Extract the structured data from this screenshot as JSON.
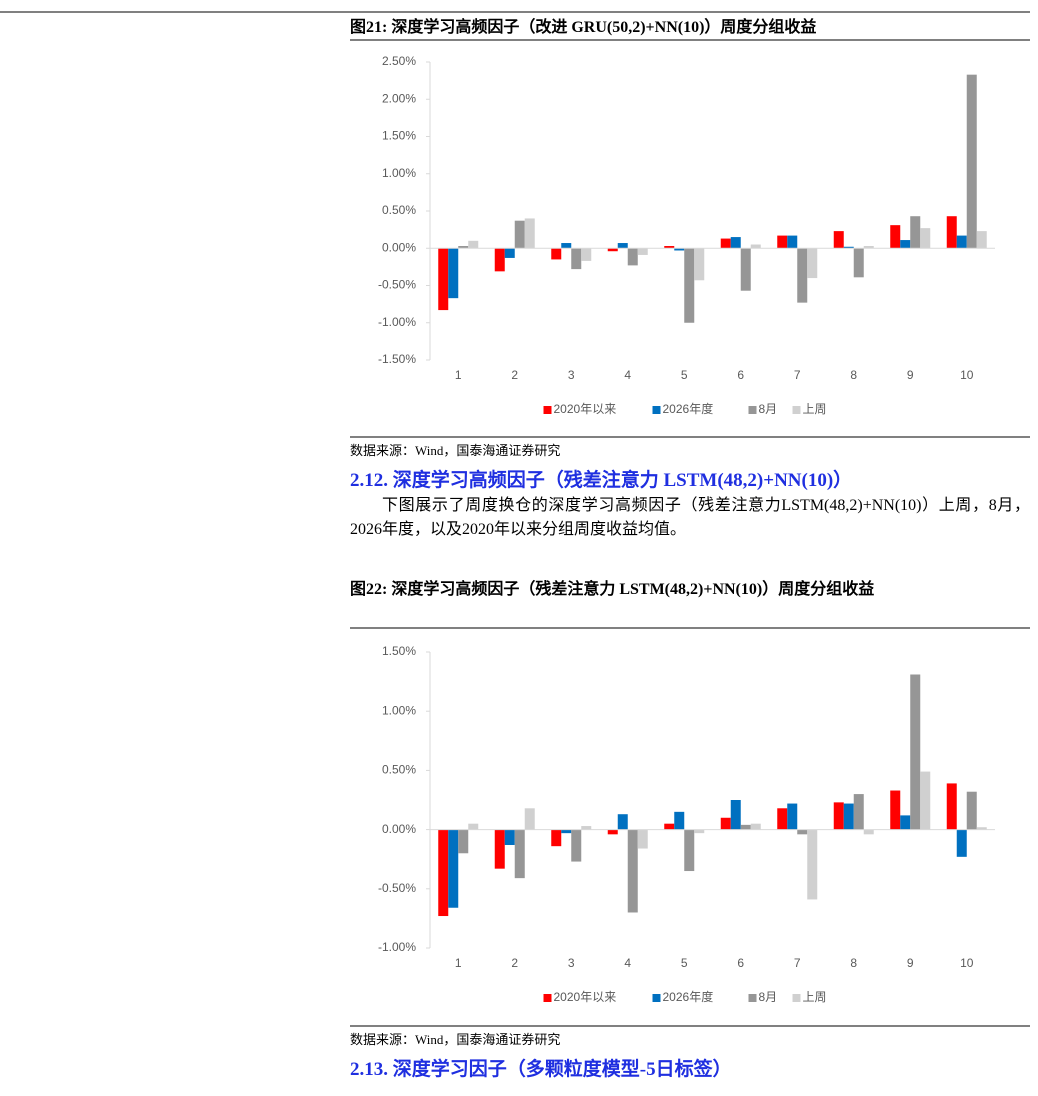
{
  "chart_data": [
    {
      "type": "bar",
      "title": "图21: 深度学习高频因子（改进 GRU(50,2)+NN(10)）周度分组收益",
      "source": "数据来源：Wind，国泰海通证券研究",
      "categories": [
        "1",
        "2",
        "3",
        "4",
        "5",
        "6",
        "7",
        "8",
        "9",
        "10"
      ],
      "series": [
        {
          "name": "2020年以来",
          "color": "#ff0000",
          "values": [
            -0.83,
            -0.31,
            -0.15,
            -0.04,
            0.03,
            0.13,
            0.17,
            0.23,
            0.31,
            0.43
          ]
        },
        {
          "name": "2026年度",
          "color": "#0070c0",
          "values": [
            -0.67,
            -0.13,
            0.07,
            0.07,
            -0.03,
            0.15,
            0.17,
            0.02,
            0.11,
            0.17
          ]
        },
        {
          "name": "8月",
          "color": "#969696",
          "values": [
            0.03,
            0.37,
            -0.28,
            -0.23,
            -1.0,
            -0.57,
            -0.73,
            -0.39,
            0.43,
            2.33
          ]
        },
        {
          "name": "上周",
          "color": "#d0d0d0",
          "values": [
            0.1,
            0.4,
            -0.17,
            -0.09,
            -0.43,
            0.05,
            -0.4,
            0.03,
            0.27,
            0.23
          ]
        }
      ],
      "ylim": [
        -1.5,
        2.5
      ],
      "yticks": [
        {
          "value": -1.5,
          "label": "-1.50%"
        },
        {
          "value": -1.0,
          "label": "-1.00%"
        },
        {
          "value": -0.5,
          "label": "-0.50%"
        },
        {
          "value": 0,
          "label": "0.00%"
        },
        {
          "value": 0.5,
          "label": "0.50%"
        },
        {
          "value": 1.0,
          "label": "1.00%"
        },
        {
          "value": 1.5,
          "label": "1.50%"
        },
        {
          "value": 2.0,
          "label": "2.00%"
        },
        {
          "value": 2.5,
          "label": "2.50%"
        }
      ],
      "legend": "bottom"
    },
    {
      "type": "bar",
      "title": "图22: 深度学习高频因子（残差注意力 LSTM(48,2)+NN(10)）周度分组收益",
      "source": "数据来源：Wind，国泰海通证券研究",
      "categories": [
        "1",
        "2",
        "3",
        "4",
        "5",
        "6",
        "7",
        "8",
        "9",
        "10"
      ],
      "series": [
        {
          "name": "2020年以来",
          "color": "#ff0000",
          "values": [
            -0.73,
            -0.33,
            -0.14,
            -0.04,
            0.05,
            0.1,
            0.18,
            0.23,
            0.33,
            0.39
          ]
        },
        {
          "name": "2026年度",
          "color": "#0070c0",
          "values": [
            -0.66,
            -0.13,
            -0.03,
            0.13,
            0.15,
            0.25,
            0.22,
            0.22,
            0.12,
            -0.23
          ]
        },
        {
          "name": "8月",
          "color": "#969696",
          "values": [
            -0.2,
            -0.41,
            -0.27,
            -0.7,
            -0.35,
            0.04,
            -0.04,
            0.3,
            1.31,
            0.32
          ]
        },
        {
          "name": "上周",
          "color": "#d0d0d0",
          "values": [
            0.05,
            0.18,
            0.03,
            -0.16,
            -0.03,
            0.05,
            -0.59,
            -0.04,
            0.49,
            0.02
          ]
        }
      ],
      "ylim": [
        -1.0,
        1.5
      ],
      "yticks": [
        {
          "value": -1.0,
          "label": "-1.00%"
        },
        {
          "value": -0.5,
          "label": "-0.50%"
        },
        {
          "value": 0,
          "label": "0.00%"
        },
        {
          "value": 0.5,
          "label": "0.50%"
        },
        {
          "value": 1.0,
          "label": "1.00%"
        },
        {
          "value": 1.5,
          "label": "1.50%"
        }
      ],
      "legend": "bottom"
    }
  ],
  "section_2_12": {
    "heading": "2.12. 深度学习高频因子（残差注意力 LSTM(48,2)+NN(10)）",
    "paragraph": "下图展示了周度换仓的深度学习高频因子（残差注意力LSTM(48,2)+NN(10)）上周，8月，2026年度，以及2020年以来分组周度收益均值。"
  },
  "section_2_13": {
    "heading": "2.13. 深度学习因子（多颗粒度模型-5日标签）"
  }
}
